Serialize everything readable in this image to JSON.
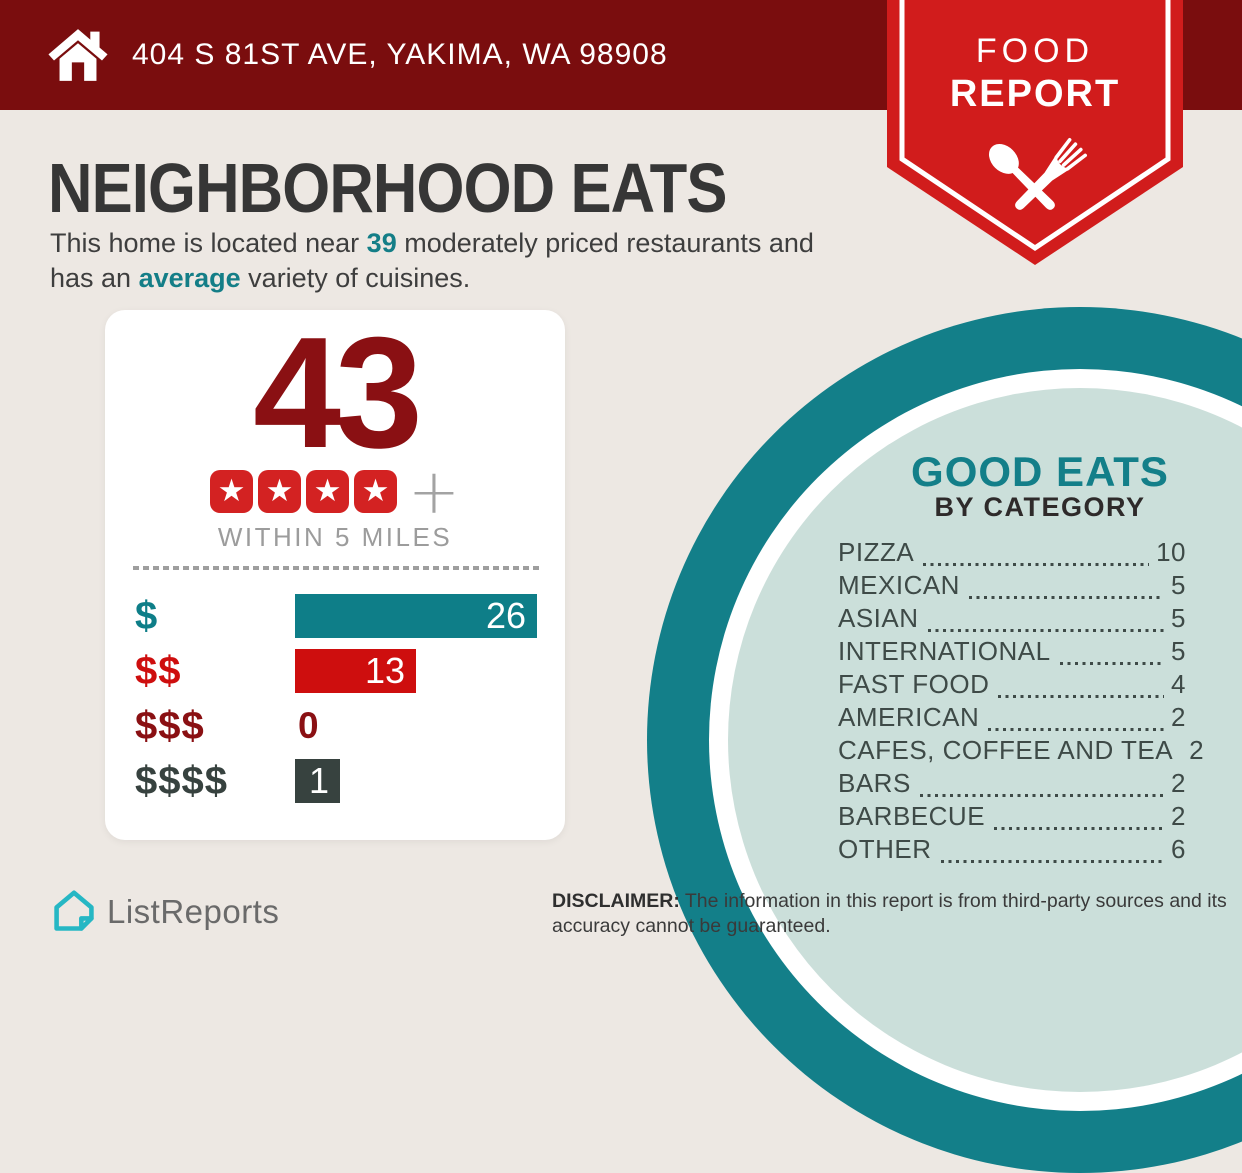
{
  "header": {
    "address": "404 S 81ST AVE, YAKIMA, WA 98908"
  },
  "badge": {
    "line1": "FOOD",
    "line2": "REPORT"
  },
  "title": "NEIGHBORHOOD EATS",
  "intro": {
    "line1_pre": "This home is located near ",
    "line1_count": "39",
    "line1_post": " moderately priced restaurants and",
    "line2_pre": "has an ",
    "line2_highlight": "average",
    "line2_post": " variety of cuisines."
  },
  "chart_data": [
    {
      "type": "bar",
      "orientation": "horizontal",
      "title": "43",
      "rating_stars": 4,
      "rating_suffix": "+",
      "caption": "WITHIN 5 MILES",
      "categories": [
        "$",
        "$$",
        "$$$",
        "$$$$"
      ],
      "values": [
        26,
        13,
        0,
        1
      ],
      "colors": [
        "#0E7E88",
        "#CE0E0E",
        "#8A1013",
        "#37423F"
      ],
      "value_labels": true,
      "legend": "none",
      "grid": false
    },
    {
      "type": "table",
      "title": "GOOD EATS",
      "subtitle": "BY CATEGORY",
      "categories": [
        "PIZZA",
        "MEXICAN",
        "ASIAN",
        "INTERNATIONAL",
        "FAST FOOD",
        "AMERICAN",
        "CAFES, COFFEE AND TEA",
        "BARS",
        "BARBECUE",
        "OTHER"
      ],
      "values": [
        10,
        5,
        5,
        5,
        4,
        2,
        2,
        2,
        2,
        6
      ]
    }
  ],
  "footer": {
    "brand": "ListReports",
    "disclaimer_bold": "DISCLAIMER:",
    "disclaimer_line1": " The information in this report is from third-party sources and its",
    "disclaimer_line2": "accuracy cannot be guaranteed."
  },
  "colors": {
    "background": "#EDE8E3",
    "header_maroon": "#7A0D0E",
    "badge_red": "#D11C1C",
    "dark_red": "#8A1013",
    "teal": "#137F89",
    "light_teal_circle": "#CBDFDA",
    "star_red": "#D32222",
    "charcoal": "#37423F",
    "gray_text": "#9C9C9C",
    "logo_teal": "#26B7C4"
  }
}
